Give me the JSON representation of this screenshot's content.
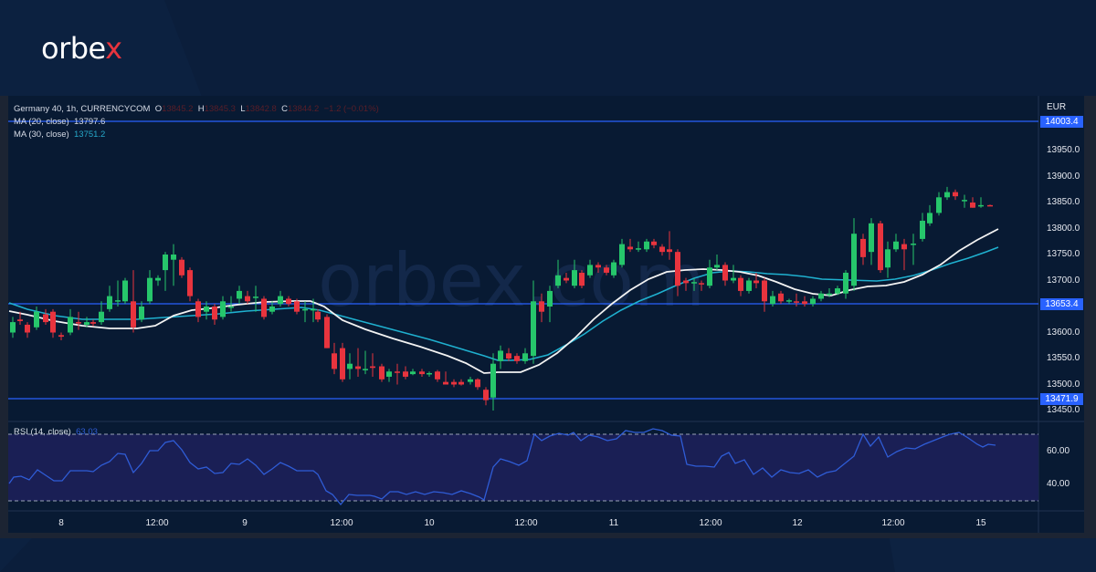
{
  "brand": {
    "logo_text_main": "orbe",
    "logo_text_accent": "x",
    "watermark": "orbex.com"
  },
  "legend": {
    "symbol": "Germany 40, 1h, CURRENCYCOM",
    "o_label": "O",
    "o_value": "13845.2",
    "h_label": "H",
    "h_value": "13845.3",
    "l_label": "L",
    "l_value": "13842.8",
    "c_label": "C",
    "c_value": "13844.2",
    "change": "−1.2 (−0.01%)",
    "ma20_label": "MA (20, close)",
    "ma20_value": "13797.6",
    "ma30_label": "MA (30, close)",
    "ma30_value": "13751.2",
    "rsi_label": "RSI (14, close)",
    "rsi_value": "63.03"
  },
  "price_axis": {
    "currency": "EUR",
    "ticks": [
      "13950.0",
      "13900.0",
      "13850.0",
      "13800.0",
      "13750.0",
      "13700.0",
      "13600.0",
      "13550.0",
      "13500.0",
      "13450.0"
    ],
    "tags": [
      "14003.4",
      "13653.4",
      "13471.9"
    ]
  },
  "rsi_axis": {
    "ticks": [
      "60.00",
      "40.00"
    ]
  },
  "time_axis": {
    "labels": [
      "8",
      "12:00",
      "9",
      "12:00",
      "10",
      "12:00",
      "11",
      "12:00",
      "12",
      "12:00",
      "15"
    ]
  },
  "colors": {
    "up": "#26c66b",
    "down": "#e8343e",
    "ma20": "#f2f2f2",
    "ma30": "#1fb0cf",
    "hline": "#2962ff",
    "rsi": "#2f5cd6",
    "rsi_band": "#1a1f55",
    "bg": "#0b1e3b"
  },
  "chart_data": [
    {
      "type": "candlestick",
      "title": "Germany 40, 1h, CURRENCYCOM",
      "ylabel": "EUR",
      "ylim": [
        13440,
        14020
      ],
      "x": [
        "8",
        "12:00",
        "9",
        "12:00",
        "10",
        "12:00",
        "11",
        "12:00",
        "12",
        "12:00",
        "15"
      ],
      "horizontal_lines": [
        14003.4,
        13653.4,
        13471.9
      ],
      "last_ohlc": {
        "open": 13845.2,
        "high": 13845.3,
        "low": 13842.8,
        "close": 13844.2,
        "change": -1.2,
        "change_pct": -0.01
      },
      "series": [
        {
          "name": "MA (20, close)",
          "last": 13797.6
        },
        {
          "name": "MA (30, close)",
          "last": 13751.2
        }
      ],
      "price_path_approx": [
        13600,
        13610,
        13620,
        13640,
        13660,
        13700,
        13720,
        13670,
        13640,
        13660,
        13650,
        13660,
        13640,
        13620,
        13560,
        13520,
        13510,
        13510,
        13500,
        13505,
        13495,
        13500,
        13490,
        13480,
        13470,
        13560,
        13580,
        13650,
        13680,
        13700,
        13720,
        13760,
        13770,
        13765,
        13700,
        13690,
        13700,
        13710,
        13680,
        13650,
        13655,
        13660,
        13680,
        13700,
        13780,
        13790,
        13760,
        13750,
        13780,
        13800,
        13830,
        13860,
        13870,
        13850,
        13845,
        13844
      ],
      "grid": false
    },
    {
      "type": "line",
      "title": "RSI (14, close)",
      "last": 63.03,
      "ylim": [
        20,
        80
      ],
      "bands": [
        30,
        70
      ],
      "ticks": [
        40,
        60
      ]
    }
  ]
}
